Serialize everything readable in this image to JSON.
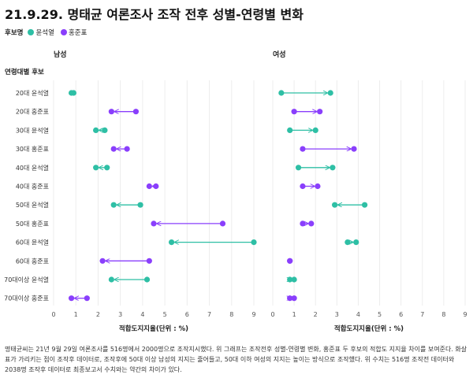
{
  "title": "21.9.29. 명태균 여론조사 조작 전후 성별-연령별 변화",
  "legend": {
    "title": "후보명",
    "items": [
      {
        "label": "윤석열",
        "color": "#2ebfa5"
      },
      {
        "label": "홍준표",
        "color": "#8a3ffc"
      }
    ]
  },
  "chart_data": {
    "type": "dumbbell",
    "row_header": "연령대별 후보",
    "categories": [
      "20대 윤석열",
      "20대 홍준표",
      "30대 윤석열",
      "30대 홍준표",
      "40대 윤석열",
      "40대 홍준표",
      "50대 윤석열",
      "50대 홍준표",
      "60대 윤석열",
      "60대 홍준표",
      "70대이상 윤석열",
      "70대이상 홍준표"
    ],
    "candidate_index": [
      0,
      1,
      0,
      1,
      0,
      1,
      0,
      1,
      0,
      1,
      0,
      1
    ],
    "panels": [
      {
        "name": "남성",
        "from": [
          0.9,
          3.7,
          2.3,
          3.3,
          2.4,
          4.6,
          3.9,
          7.6,
          9.0,
          4.3,
          4.2,
          1.5
        ],
        "to": [
          0.8,
          2.6,
          1.9,
          2.7,
          1.9,
          4.3,
          2.7,
          4.5,
          5.3,
          2.2,
          2.6,
          0.8
        ]
      },
      {
        "name": "여성",
        "from": [
          0.4,
          1.0,
          0.8,
          1.4,
          1.2,
          1.4,
          4.3,
          1.4,
          3.5,
          0.8,
          0.8,
          0.8
        ],
        "to": [
          2.7,
          2.2,
          2.0,
          3.8,
          2.8,
          2.1,
          2.9,
          1.8,
          3.9,
          0.8,
          1.0,
          1.0
        ]
      }
    ],
    "xlim": [
      0,
      9
    ],
    "xticks": [
      0,
      1,
      2,
      3,
      4,
      5,
      6,
      7,
      8,
      9
    ],
    "xlabel": "적합도지지율(단위 : %)"
  },
  "note": "명태균씨는 21년 9월 29일 여론조사를 516명에서 2000명으로 조작지시했다. 위 그래프는 조작전후 성별-연령별 변화, 홍준표 두 후보의 적합도 지지율 차이를 보여준다. 화살표가 가리키는 점이 조작후 데이터로, 조작후에 50대 이상 남성의 지지는 줄어들고, 50대 이하 여성의 지지는 높이는 방식으로 조작했다. 위 수치는 516명 조작전 데이터와 2038명 조작후 데이터로 최종보고서 수치와는 약간의 차이가 있다."
}
